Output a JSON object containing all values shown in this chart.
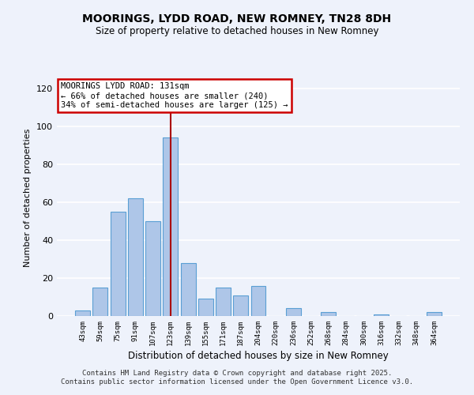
{
  "title": "MOORINGS, LYDD ROAD, NEW ROMNEY, TN28 8DH",
  "subtitle": "Size of property relative to detached houses in New Romney",
  "xlabel": "Distribution of detached houses by size in New Romney",
  "ylabel": "Number of detached properties",
  "bar_labels": [
    "43sqm",
    "59sqm",
    "75sqm",
    "91sqm",
    "107sqm",
    "123sqm",
    "139sqm",
    "155sqm",
    "171sqm",
    "187sqm",
    "204sqm",
    "220sqm",
    "236sqm",
    "252sqm",
    "268sqm",
    "284sqm",
    "300sqm",
    "316sqm",
    "332sqm",
    "348sqm",
    "364sqm"
  ],
  "bar_values": [
    3,
    15,
    55,
    62,
    50,
    94,
    28,
    9,
    15,
    11,
    16,
    0,
    4,
    0,
    2,
    0,
    0,
    1,
    0,
    0,
    2
  ],
  "bar_color": "#aec6e8",
  "bar_edge_color": "#5a9fd4",
  "vline_index": 5,
  "vline_color": "#aa0000",
  "annotation_title": "MOORINGS LYDD ROAD: 131sqm",
  "annotation_line1": "← 66% of detached houses are smaller (240)",
  "annotation_line2": "34% of semi-detached houses are larger (125) →",
  "annotation_box_color": "#ffffff",
  "annotation_box_edge": "#cc0000",
  "ylim": [
    0,
    125
  ],
  "yticks": [
    0,
    20,
    40,
    60,
    80,
    100,
    120
  ],
  "background_color": "#eef2fb",
  "grid_color": "#ffffff",
  "footer1": "Contains HM Land Registry data © Crown copyright and database right 2025.",
  "footer2": "Contains public sector information licensed under the Open Government Licence v3.0."
}
